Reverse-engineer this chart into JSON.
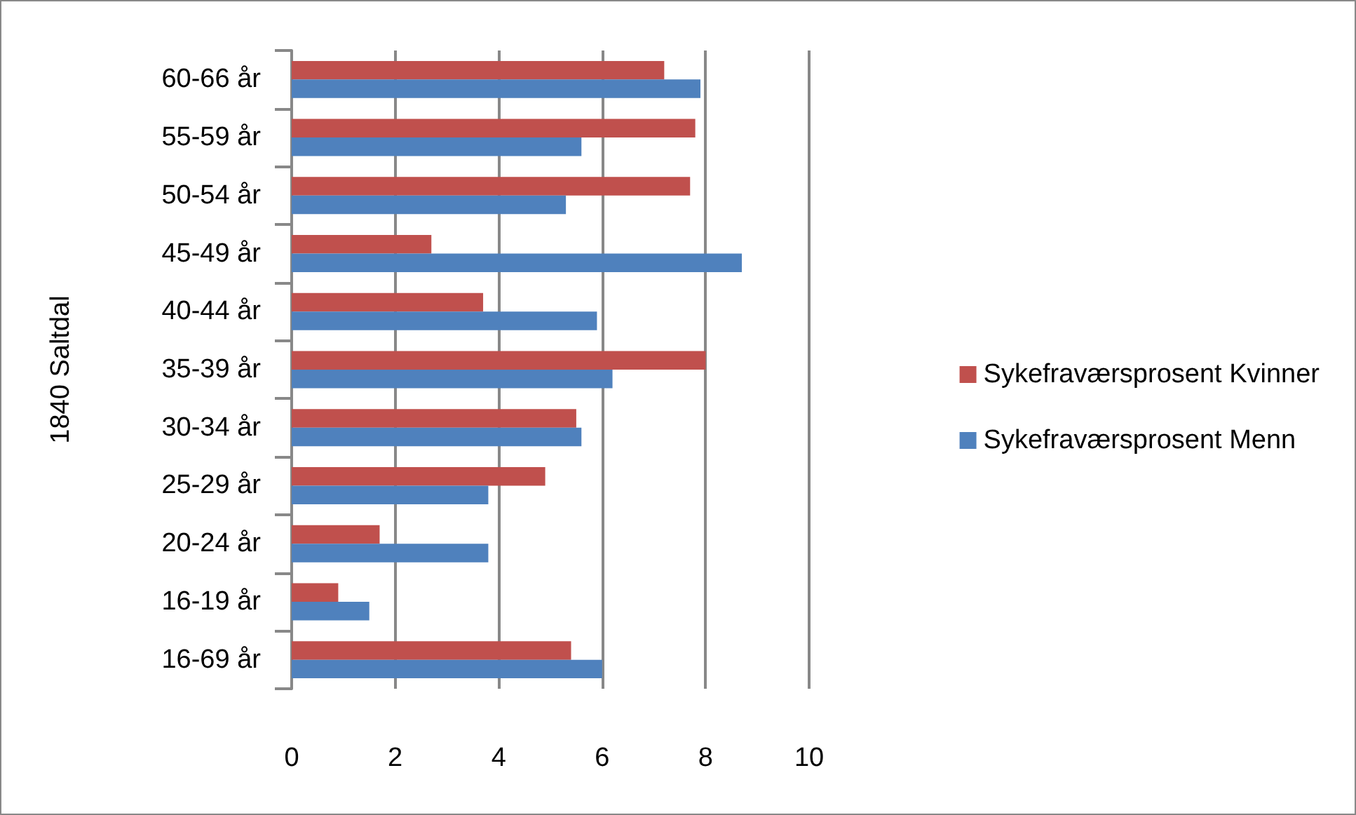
{
  "chart_data": {
    "type": "bar",
    "orientation": "horizontal",
    "ylabel": "1840 Saltdal",
    "categories": [
      "60-66 år",
      "55-59 år",
      "50-54 år",
      "45-49 år",
      "40-44 år",
      "35-39 år",
      "30-34 år",
      "25-29 år",
      "20-24 år",
      "16-19 år",
      "16-69 år"
    ],
    "series": [
      {
        "name": "Sykefraværsprosent Kvinner",
        "color": "#c0504d",
        "values": [
          7.2,
          7.8,
          7.7,
          2.7,
          3.7,
          8.0,
          5.5,
          4.9,
          1.7,
          0.9,
          5.4
        ]
      },
      {
        "name": "Sykefraværsprosent Menn",
        "color": "#4f81bd",
        "values": [
          7.9,
          5.6,
          5.3,
          8.7,
          5.9,
          6.2,
          5.6,
          3.8,
          3.8,
          1.5,
          6.0
        ]
      }
    ],
    "xlim": [
      0,
      10
    ],
    "xticks": [
      0,
      2,
      4,
      6,
      8,
      10
    ],
    "grid": "x",
    "legend": "right"
  }
}
